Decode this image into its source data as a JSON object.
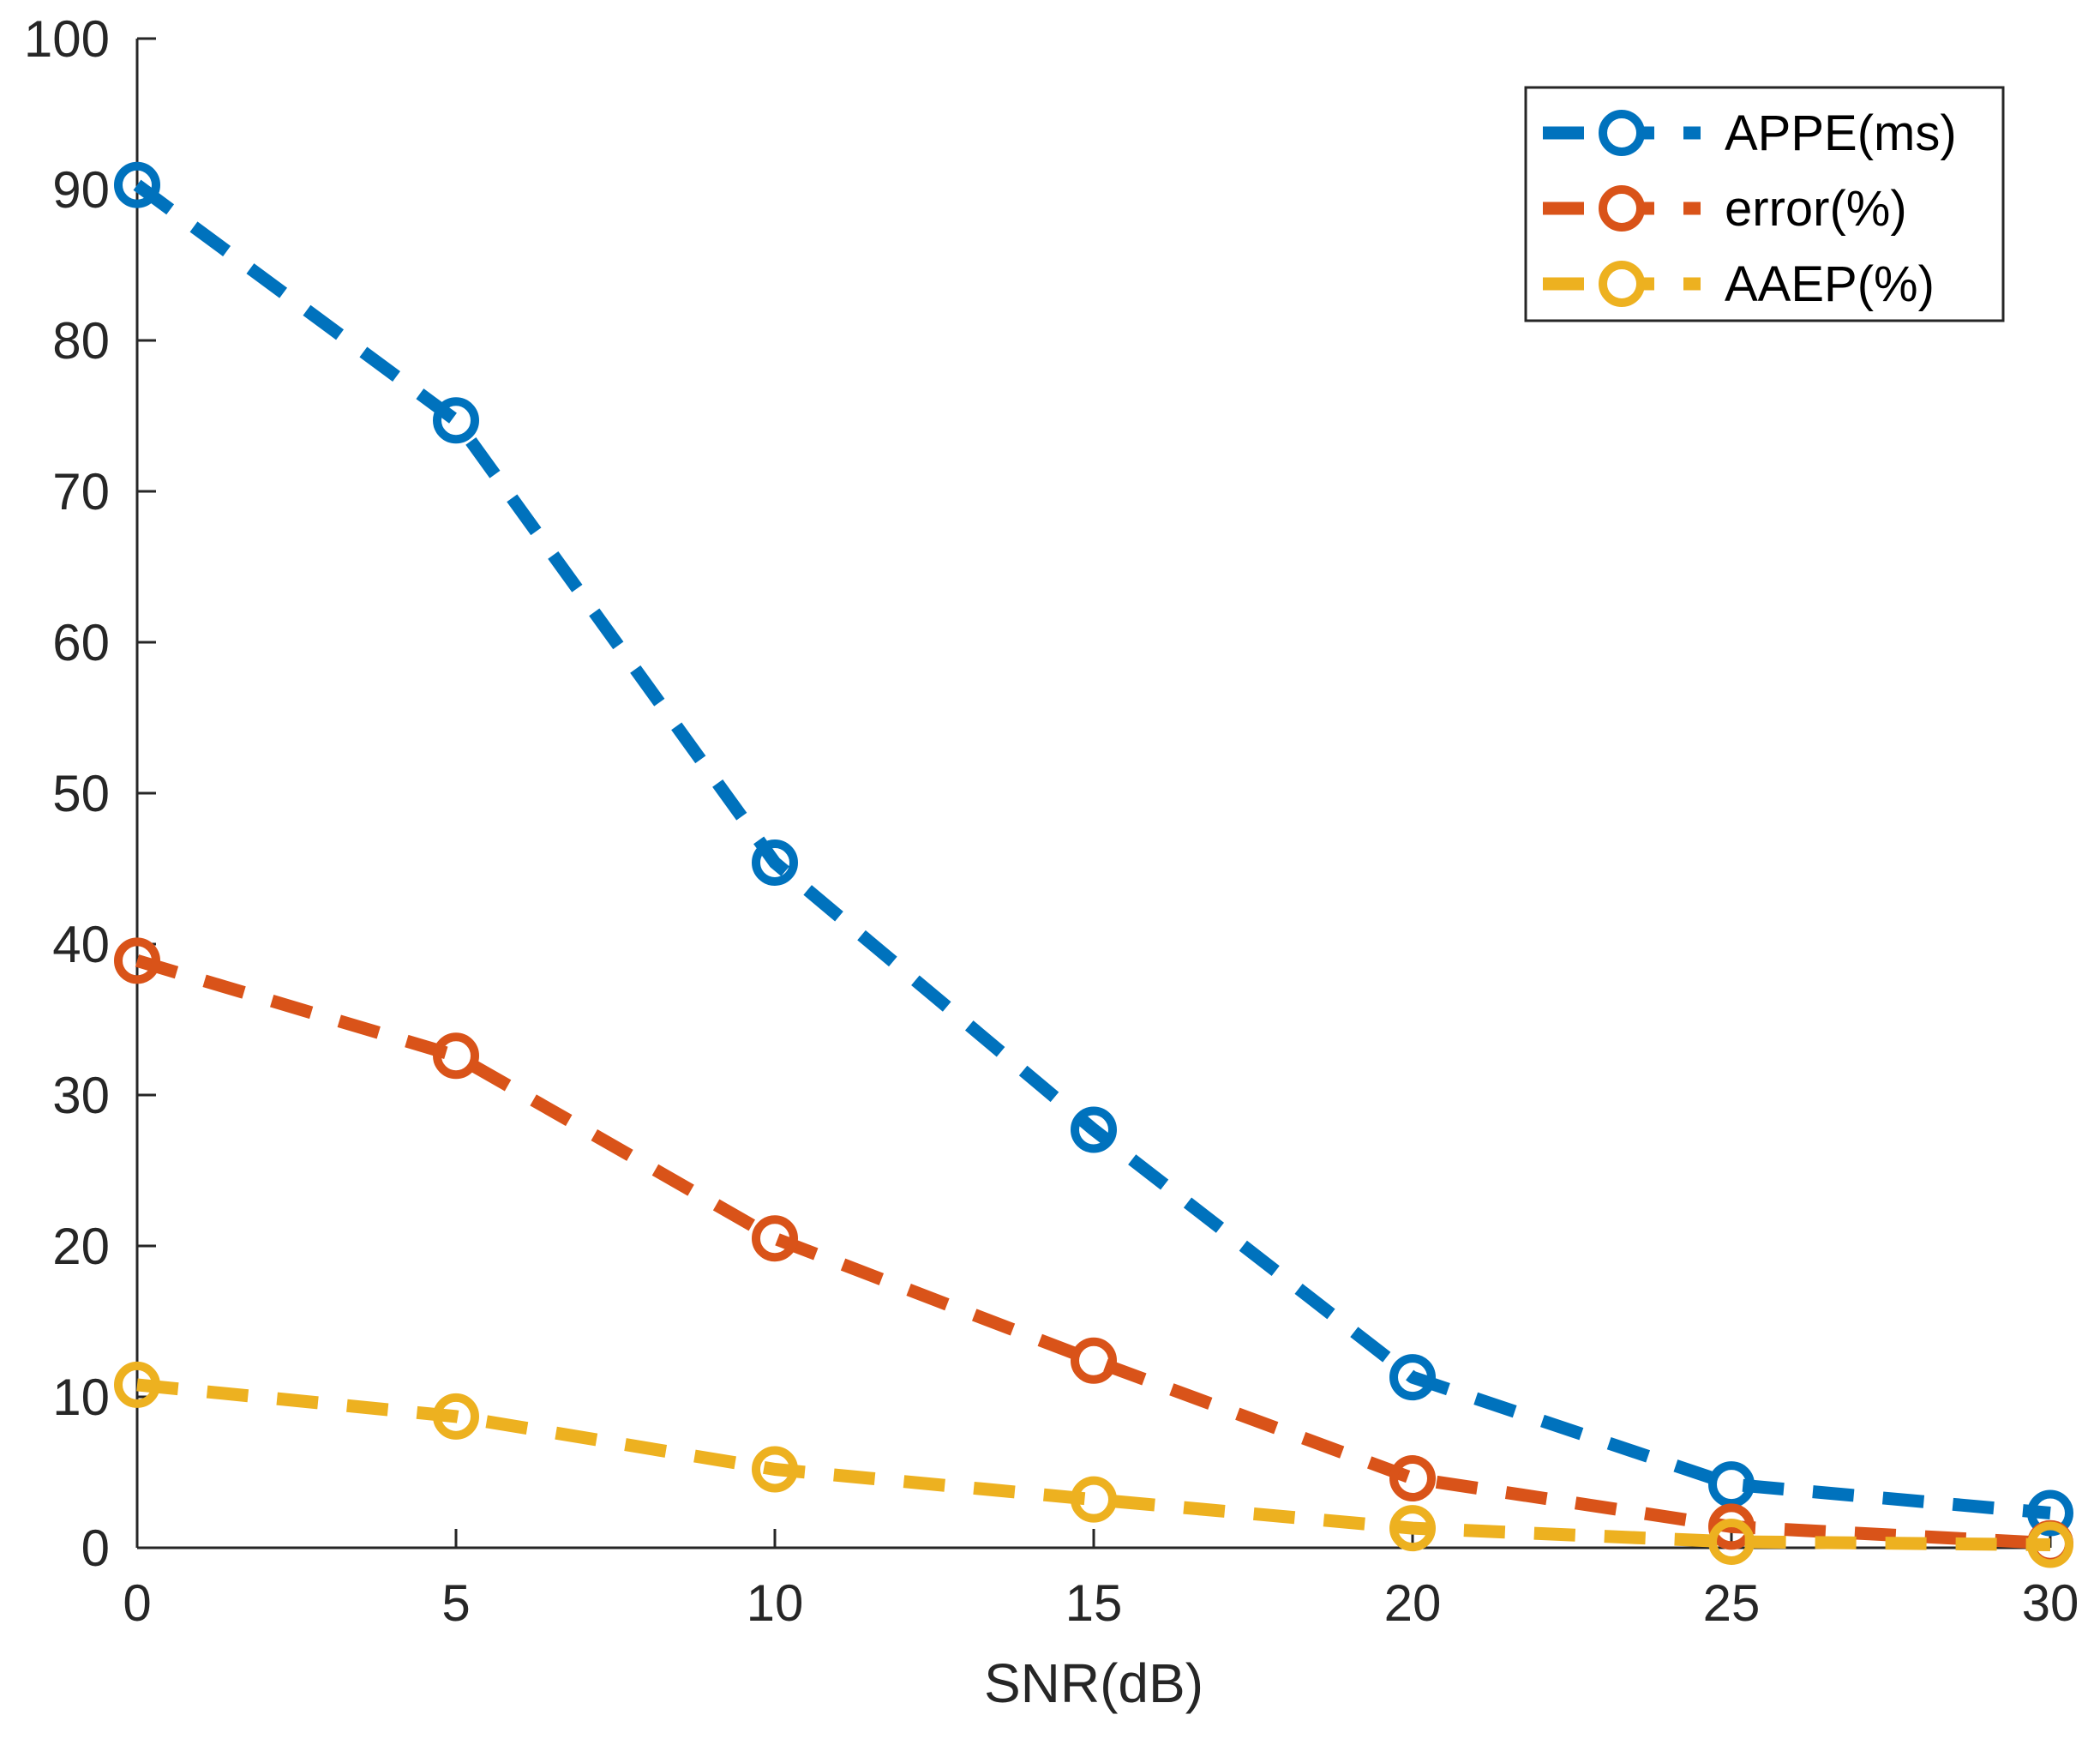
{
  "chart_data": {
    "type": "line",
    "title": "",
    "xlabel": "SNR(dB)",
    "ylabel": "",
    "x": [
      0,
      5,
      10,
      15,
      20,
      25,
      30
    ],
    "xlim": [
      0,
      30
    ],
    "ylim": [
      0,
      100
    ],
    "xticks": [
      0,
      5,
      10,
      15,
      20,
      25,
      30
    ],
    "yticks": [
      0,
      10,
      20,
      30,
      40,
      50,
      60,
      70,
      80,
      90,
      100
    ],
    "grid": false,
    "legend_position": "top-right",
    "series": [
      {
        "name": "APPE(ms)",
        "color": "#0072BD",
        "line_style": "dashed",
        "marker": "circle",
        "values": [
          90.3,
          74.7,
          45.4,
          27.7,
          11.3,
          4.2,
          2.3
        ]
      },
      {
        "name": "error(%)",
        "color": "#D95319",
        "line_style": "dashed",
        "marker": "circle",
        "values": [
          38.9,
          32.6,
          20.5,
          12.4,
          4.6,
          1.4,
          0.3
        ]
      },
      {
        "name": "AAEP(%)",
        "color": "#EDB120",
        "line_style": "dashed",
        "marker": "circle",
        "values": [
          10.8,
          8.7,
          5.2,
          3.2,
          1.3,
          0.4,
          0.2
        ]
      }
    ]
  }
}
